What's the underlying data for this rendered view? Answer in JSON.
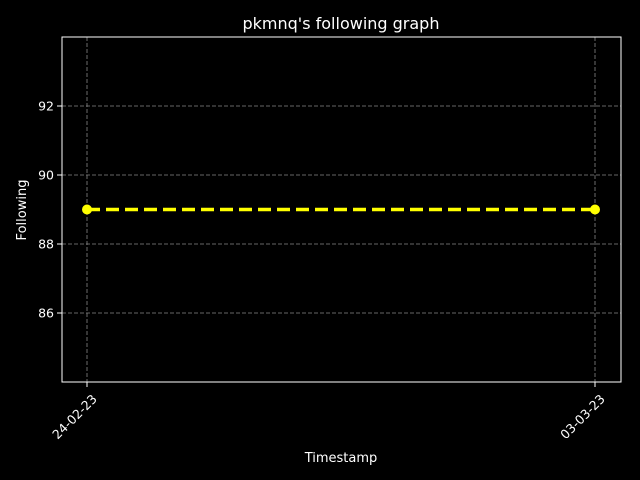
{
  "chart_data": {
    "type": "line",
    "title": "pkmnq's following graph",
    "xlabel": "Timestamp",
    "ylabel": "Following",
    "x": [
      "24-02-23",
      "03-03-23"
    ],
    "series": [
      {
        "values": [
          89,
          89
        ]
      }
    ],
    "ylim": [
      84.0,
      94.0
    ],
    "yticks": [
      86,
      88,
      90,
      92
    ],
    "grid": true,
    "line_style": "dashed",
    "marker": "circle",
    "colors": {
      "background": "#000000",
      "line": "#ffff00",
      "axes": "#ffffff",
      "grid": "#888888"
    }
  }
}
